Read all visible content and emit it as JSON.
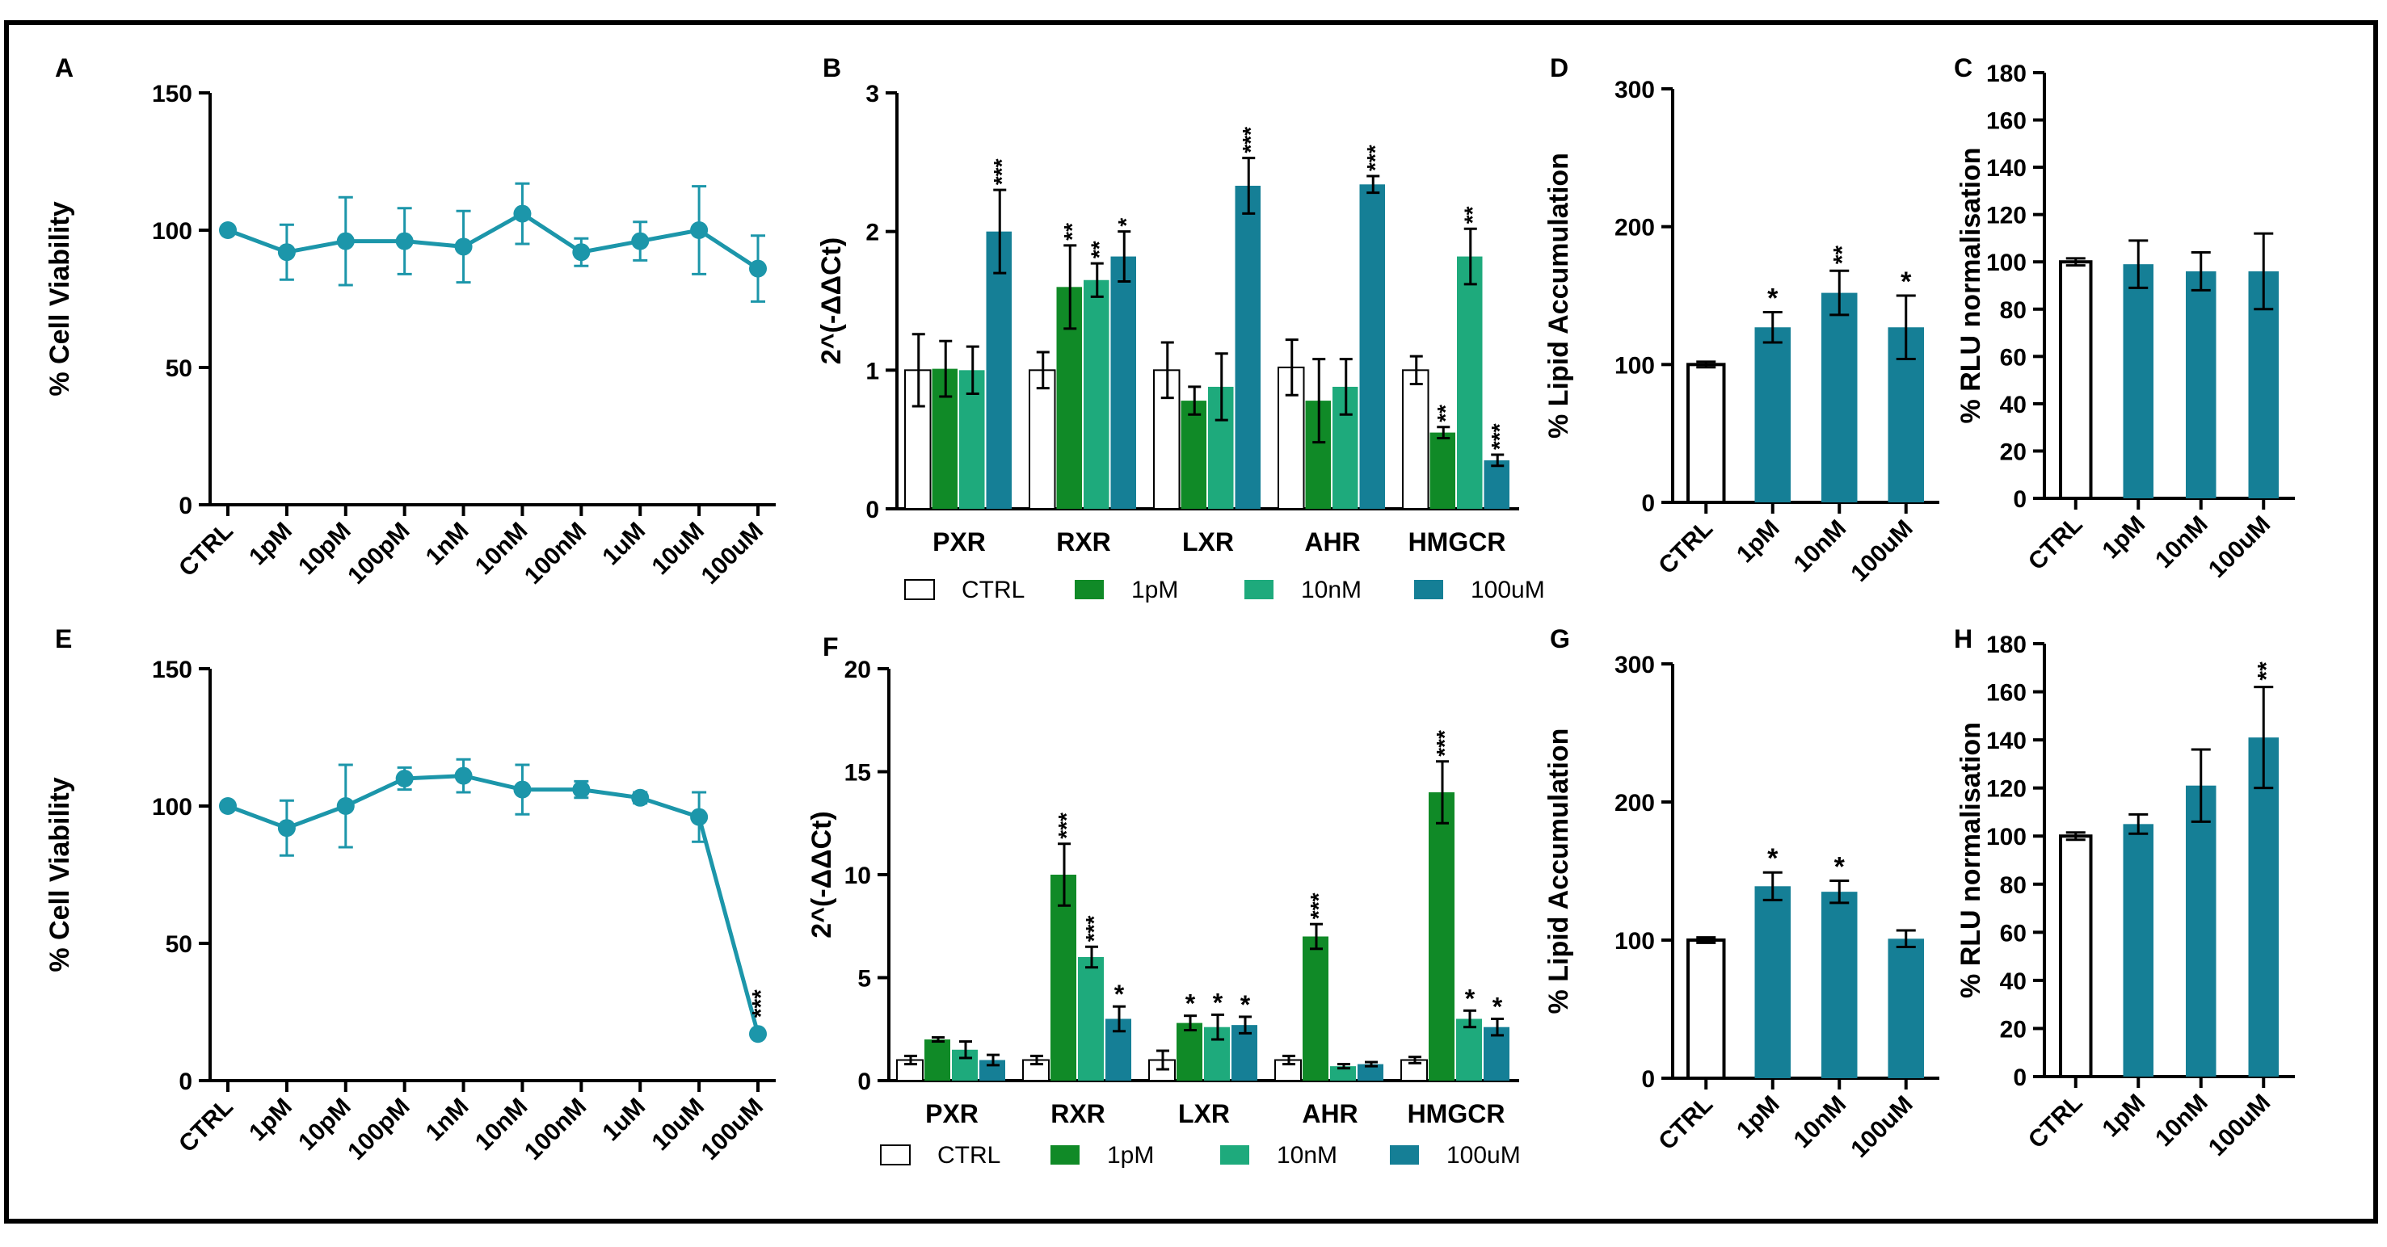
{
  "colors": {
    "ctrl": "#ffffff",
    "pm1": "#108a27",
    "nm10": "#1eaa7c",
    "um100": "#157f96",
    "line": "#1c96aa",
    "axis": "#000000"
  },
  "legend": {
    "ctrl": "CTRL",
    "pm1": "1pM",
    "nm10": "10nM",
    "um100": "100uM"
  },
  "chart_data": [
    {
      "panel": "A",
      "type": "line",
      "ylabel": "% Cell Viability",
      "ylim": [
        0,
        150
      ],
      "yticks": [
        "0",
        "50",
        "100",
        "150"
      ],
      "categories": [
        "CTRL",
        "1pM",
        "10pM",
        "100pM",
        "1nM",
        "10nM",
        "100nM",
        "1uM",
        "10uM",
        "100uM"
      ],
      "values": [
        100,
        92,
        96,
        96,
        94,
        106,
        92,
        96,
        100,
        86
      ],
      "errors": [
        0,
        10,
        16,
        12,
        13,
        11,
        5,
        7,
        16,
        12
      ],
      "stars": [
        "",
        "",
        "",
        "",
        "",
        "",
        "",
        "",
        "",
        ""
      ]
    },
    {
      "panel": "B",
      "type": "bar",
      "ylabel": "2^(-ΔΔCt)",
      "ylim": [
        0,
        3
      ],
      "yticks": [
        "0",
        "1",
        "2",
        "3"
      ],
      "categories": [
        "PXR",
        "RXR",
        "LXR",
        "AHR",
        "HMGCR"
      ],
      "series": [
        {
          "name": "CTRL",
          "values": [
            1.0,
            1.0,
            1.0,
            1.02,
            1.0
          ],
          "errors": [
            0.26,
            0.13,
            0.2,
            0.2,
            0.1
          ],
          "stars": [
            "",
            "",
            "",
            "",
            ""
          ]
        },
        {
          "name": "1pM",
          "values": [
            1.01,
            1.6,
            0.78,
            0.78,
            0.55
          ],
          "errors": [
            0.2,
            0.3,
            0.1,
            0.3,
            0.04
          ],
          "stars": [
            "",
            "**",
            "",
            "",
            "**"
          ]
        },
        {
          "name": "10nM",
          "values": [
            1.0,
            1.65,
            0.88,
            0.88,
            1.82
          ],
          "errors": [
            0.17,
            0.12,
            0.24,
            0.2,
            0.2
          ],
          "stars": [
            "",
            "**",
            "",
            "",
            "**"
          ]
        },
        {
          "name": "100uM",
          "values": [
            2.0,
            1.82,
            2.33,
            2.34,
            0.35
          ],
          "errors": [
            0.3,
            0.18,
            0.2,
            0.06,
            0.04
          ],
          "stars": [
            "***",
            "*",
            "***",
            "***",
            "***"
          ]
        }
      ]
    },
    {
      "panel": "D",
      "type": "bar",
      "ylabel": "% Lipid Accumulation",
      "ylim": [
        0,
        300
      ],
      "yticks": [
        "0",
        "100",
        "200",
        "300"
      ],
      "categories": [
        "CTRL",
        "1pM",
        "10nM",
        "100uM"
      ],
      "values": [
        100,
        127,
        152,
        127
      ],
      "errors": [
        2,
        11,
        16,
        23
      ],
      "stars": [
        "",
        "*",
        "**",
        "*"
      ]
    },
    {
      "panel": "C",
      "type": "bar",
      "ylabel": "% RLU normalisation",
      "ylim": [
        0,
        180
      ],
      "yticks": [
        "0",
        "20",
        "40",
        "60",
        "80",
        "100",
        "120",
        "140",
        "160",
        "180"
      ],
      "categories": [
        "CTRL",
        "1pM",
        "10nM",
        "100uM"
      ],
      "values": [
        100,
        99,
        96,
        96
      ],
      "errors": [
        1.5,
        10,
        8,
        16
      ],
      "stars": [
        "",
        "",
        "",
        ""
      ]
    },
    {
      "panel": "E",
      "type": "line",
      "ylabel": "% Cell Viability",
      "ylim": [
        0,
        150
      ],
      "yticks": [
        "0",
        "50",
        "100",
        "150"
      ],
      "categories": [
        "CTRL",
        "1pM",
        "10pM",
        "100pM",
        "1nM",
        "10nM",
        "100nM",
        "1uM",
        "10uM",
        "100uM"
      ],
      "values": [
        100,
        92,
        100,
        110,
        111,
        106,
        106,
        103,
        96,
        17
      ],
      "errors": [
        0,
        10,
        15,
        4,
        6,
        9,
        3,
        2,
        9,
        0
      ],
      "stars": [
        "",
        "",
        "",
        "",
        "",
        "",
        "",
        "",
        "",
        "***"
      ]
    },
    {
      "panel": "F",
      "type": "bar",
      "ylabel": "2^(-ΔΔCt)",
      "ylim": [
        0,
        20
      ],
      "yticks": [
        "0",
        "5",
        "10",
        "15",
        "20"
      ],
      "categories": [
        "PXR",
        "RXR",
        "LXR",
        "AHR",
        "HMGCR"
      ],
      "series": [
        {
          "name": "CTRL",
          "values": [
            1.0,
            1.0,
            1.0,
            1.0,
            1.0
          ],
          "errors": [
            0.2,
            0.2,
            0.45,
            0.2,
            0.15
          ],
          "stars": [
            "",
            "",
            "",
            "",
            ""
          ]
        },
        {
          "name": "1pM",
          "values": [
            2.0,
            10.0,
            2.8,
            7.0,
            14.0
          ],
          "errors": [
            0.1,
            1.5,
            0.35,
            0.6,
            1.5
          ],
          "stars": [
            "",
            "***",
            "*",
            "***",
            "***"
          ]
        },
        {
          "name": "10nM",
          "values": [
            1.5,
            6.0,
            2.6,
            0.7,
            3.0
          ],
          "errors": [
            0.4,
            0.5,
            0.6,
            0.1,
            0.4
          ],
          "stars": [
            "",
            "***",
            "*",
            "",
            "*"
          ]
        },
        {
          "name": "100uM",
          "values": [
            1.0,
            3.0,
            2.7,
            0.8,
            2.6
          ],
          "errors": [
            0.25,
            0.6,
            0.4,
            0.1,
            0.4
          ],
          "stars": [
            "",
            "*",
            "*",
            "",
            "*"
          ]
        }
      ]
    },
    {
      "panel": "G",
      "type": "bar",
      "ylabel": "% Lipid Accumulation",
      "ylim": [
        0,
        300
      ],
      "yticks": [
        "0",
        "100",
        "200",
        "300"
      ],
      "categories": [
        "CTRL",
        "1pM",
        "10nM",
        "100uM"
      ],
      "values": [
        100,
        139,
        135,
        101
      ],
      "errors": [
        2,
        10,
        8,
        6
      ],
      "stars": [
        "",
        "*",
        "*",
        ""
      ]
    },
    {
      "panel": "H",
      "type": "bar",
      "ylabel": "% RLU normalisation",
      "ylim": [
        0,
        180
      ],
      "yticks": [
        "0",
        "20",
        "40",
        "60",
        "80",
        "100",
        "120",
        "140",
        "160",
        "180"
      ],
      "categories": [
        "CTRL",
        "1pM",
        "10nM",
        "100uM"
      ],
      "values": [
        100,
        105,
        121,
        141
      ],
      "errors": [
        1.5,
        4,
        15,
        21
      ],
      "stars": [
        "",
        "",
        "",
        "**"
      ]
    }
  ]
}
